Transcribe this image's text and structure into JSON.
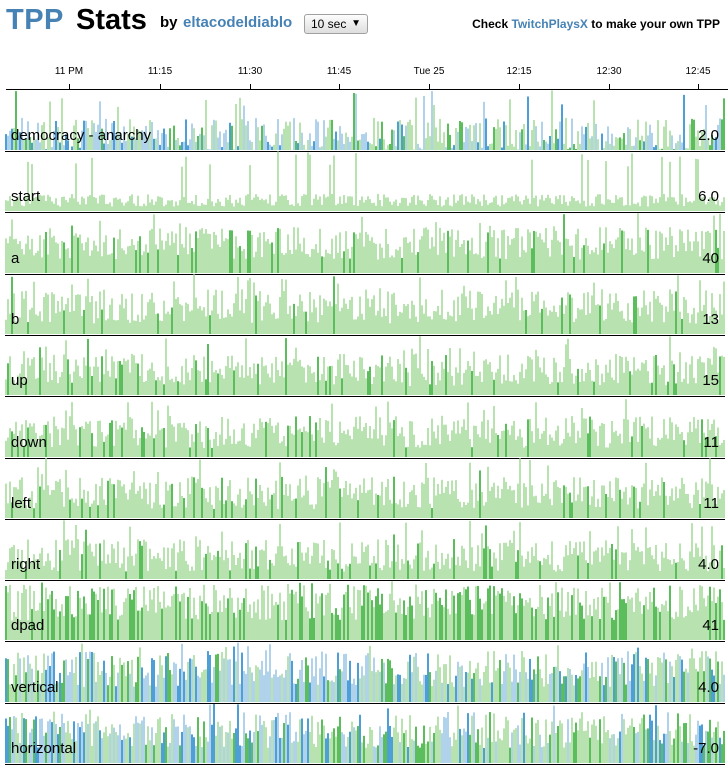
{
  "header": {
    "title_part1": "TPP",
    "title_part2": "Stats",
    "by": "by",
    "author": "eltacodeldiablo",
    "interval": "10 sec",
    "check_prefix": "Check",
    "check_link": "TwitchPlaysX",
    "check_suffix": "to make your own TPP"
  },
  "axis": {
    "ticks": [
      "11 PM",
      "11:15",
      "11:30",
      "11:45",
      "Tue 25",
      "12:15",
      "12:30",
      "12:45"
    ]
  },
  "colors": {
    "green_light": "#b8e2b0",
    "green_dark": "#5bbd5b",
    "blue_light": "#b0d2ea",
    "blue_dark": "#4d9fd6"
  },
  "rows": [
    {
      "label": "democracy - anarchy",
      "value": "2.0"
    },
    {
      "label": "start",
      "value": "6.0"
    },
    {
      "label": "a",
      "value": "40"
    },
    {
      "label": "b",
      "value": "13"
    },
    {
      "label": "up",
      "value": "15"
    },
    {
      "label": "down",
      "value": "11"
    },
    {
      "label": "left",
      "value": "11"
    },
    {
      "label": "right",
      "value": "4.0"
    },
    {
      "label": "dpad",
      "value": "41"
    },
    {
      "label": "vertical",
      "value": "4.0"
    },
    {
      "label": "horizontal",
      "value": "-7.0"
    }
  ]
}
